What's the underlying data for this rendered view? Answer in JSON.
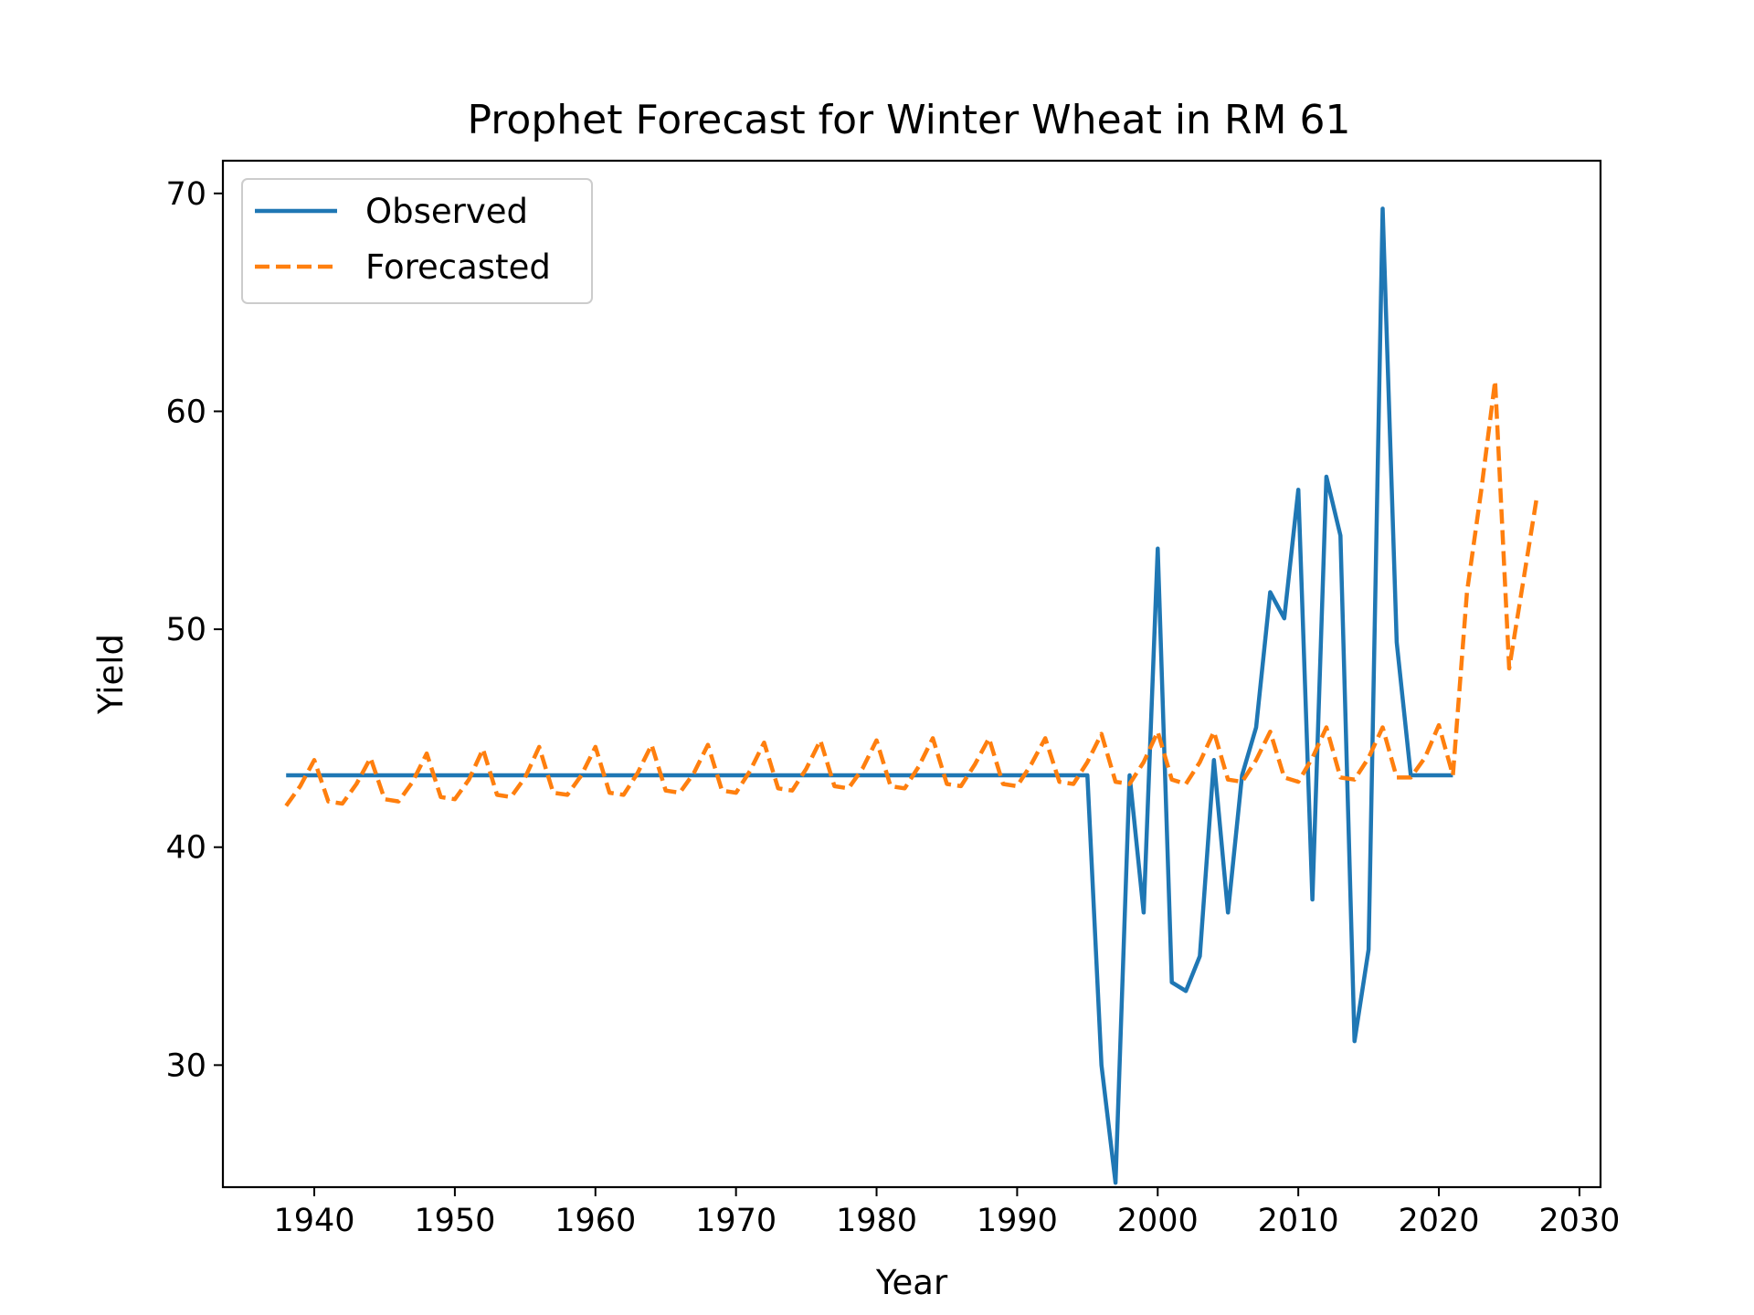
{
  "chart_data": {
    "type": "line",
    "title": "Prophet Forecast for Winter Wheat in RM 61",
    "xlabel": "Year",
    "ylabel": "Yield",
    "xlim": [
      1933.5,
      2031.5
    ],
    "ylim": [
      24.4,
      71.5
    ],
    "xticks": [
      "1940",
      "1950",
      "1960",
      "1970",
      "1980",
      "1990",
      "2000",
      "2010",
      "2020",
      "2030"
    ],
    "yticks": [
      "30",
      "40",
      "50",
      "60",
      "70"
    ],
    "grid": false,
    "legend_position": "top-left",
    "series": [
      {
        "name": "Observed",
        "color": "#1f77b4",
        "style": "solid",
        "x": [
          1938,
          1939,
          1940,
          1941,
          1942,
          1943,
          1944,
          1945,
          1946,
          1947,
          1948,
          1949,
          1950,
          1951,
          1952,
          1953,
          1954,
          1955,
          1956,
          1957,
          1958,
          1959,
          1960,
          1961,
          1962,
          1963,
          1964,
          1965,
          1966,
          1967,
          1968,
          1969,
          1970,
          1971,
          1972,
          1973,
          1974,
          1975,
          1976,
          1977,
          1978,
          1979,
          1980,
          1981,
          1982,
          1983,
          1984,
          1985,
          1986,
          1987,
          1988,
          1989,
          1990,
          1991,
          1992,
          1993,
          1994,
          1995,
          1996,
          1997,
          1998,
          1999,
          2000,
          2001,
          2002,
          2003,
          2004,
          2005,
          2006,
          2007,
          2008,
          2009,
          2010,
          2011,
          2012,
          2013,
          2014,
          2015,
          2016,
          2017,
          2018,
          2019,
          2020,
          2021
        ],
        "y": [
          43.3,
          43.3,
          43.3,
          43.3,
          43.3,
          43.3,
          43.3,
          43.3,
          43.3,
          43.3,
          43.3,
          43.3,
          43.3,
          43.3,
          43.3,
          43.3,
          43.3,
          43.3,
          43.3,
          43.3,
          43.3,
          43.3,
          43.3,
          43.3,
          43.3,
          43.3,
          43.3,
          43.3,
          43.3,
          43.3,
          43.3,
          43.3,
          43.3,
          43.3,
          43.3,
          43.3,
          43.3,
          43.3,
          43.3,
          43.3,
          43.3,
          43.3,
          43.3,
          43.3,
          43.3,
          43.3,
          43.3,
          43.3,
          43.3,
          43.3,
          43.3,
          43.3,
          43.3,
          43.3,
          43.3,
          43.3,
          43.3,
          43.3,
          30.0,
          24.6,
          43.3,
          37.0,
          53.7,
          33.8,
          33.4,
          35.0,
          44.0,
          37.0,
          43.3,
          45.5,
          51.7,
          50.5,
          56.4,
          37.6,
          57.0,
          54.3,
          31.1,
          35.3,
          69.3,
          49.4,
          43.3,
          43.3,
          43.3,
          43.3
        ]
      },
      {
        "name": "Forecasted",
        "color": "#ff7f0e",
        "style": "dashed",
        "x": [
          1938,
          1939,
          1940,
          1941,
          1942,
          1943,
          1944,
          1945,
          1946,
          1947,
          1948,
          1949,
          1950,
          1951,
          1952,
          1953,
          1954,
          1955,
          1956,
          1957,
          1958,
          1959,
          1960,
          1961,
          1962,
          1963,
          1964,
          1965,
          1966,
          1967,
          1968,
          1969,
          1970,
          1971,
          1972,
          1973,
          1974,
          1975,
          1976,
          1977,
          1978,
          1979,
          1980,
          1981,
          1982,
          1983,
          1984,
          1985,
          1986,
          1987,
          1988,
          1989,
          1990,
          1991,
          1992,
          1993,
          1994,
          1995,
          1996,
          1997,
          1998,
          1999,
          2000,
          2001,
          2002,
          2003,
          2004,
          2005,
          2006,
          2007,
          2008,
          2009,
          2010,
          2011,
          2012,
          2013,
          2014,
          2015,
          2016,
          2017,
          2018,
          2019,
          2020,
          2021,
          2022,
          2023,
          2024,
          2025,
          2026,
          2027
        ],
        "y": [
          41.9,
          42.8,
          44.0,
          42.1,
          42.0,
          42.9,
          44.1,
          42.2,
          42.1,
          43.0,
          44.3,
          42.3,
          42.2,
          43.1,
          44.5,
          42.4,
          42.3,
          43.2,
          44.6,
          42.5,
          42.4,
          43.3,
          44.6,
          42.5,
          42.4,
          43.4,
          44.7,
          42.6,
          42.5,
          43.4,
          44.7,
          42.6,
          42.5,
          43.5,
          44.8,
          42.7,
          42.6,
          43.6,
          44.9,
          42.8,
          42.7,
          43.6,
          44.9,
          42.8,
          42.7,
          43.7,
          45.0,
          42.9,
          42.8,
          43.8,
          45.0,
          42.9,
          42.8,
          43.8,
          45.0,
          43.0,
          42.9,
          43.9,
          45.2,
          43.0,
          42.9,
          43.9,
          45.3,
          43.1,
          42.9,
          43.9,
          45.3,
          43.1,
          43.0,
          44.0,
          45.3,
          43.2,
          43.0,
          44.1,
          45.5,
          43.2,
          43.1,
          44.1,
          45.5,
          43.2,
          43.2,
          44.1,
          45.6,
          43.3,
          51.7,
          56.3,
          61.4,
          48.2,
          52.2,
          56.2
        ]
      }
    ]
  }
}
